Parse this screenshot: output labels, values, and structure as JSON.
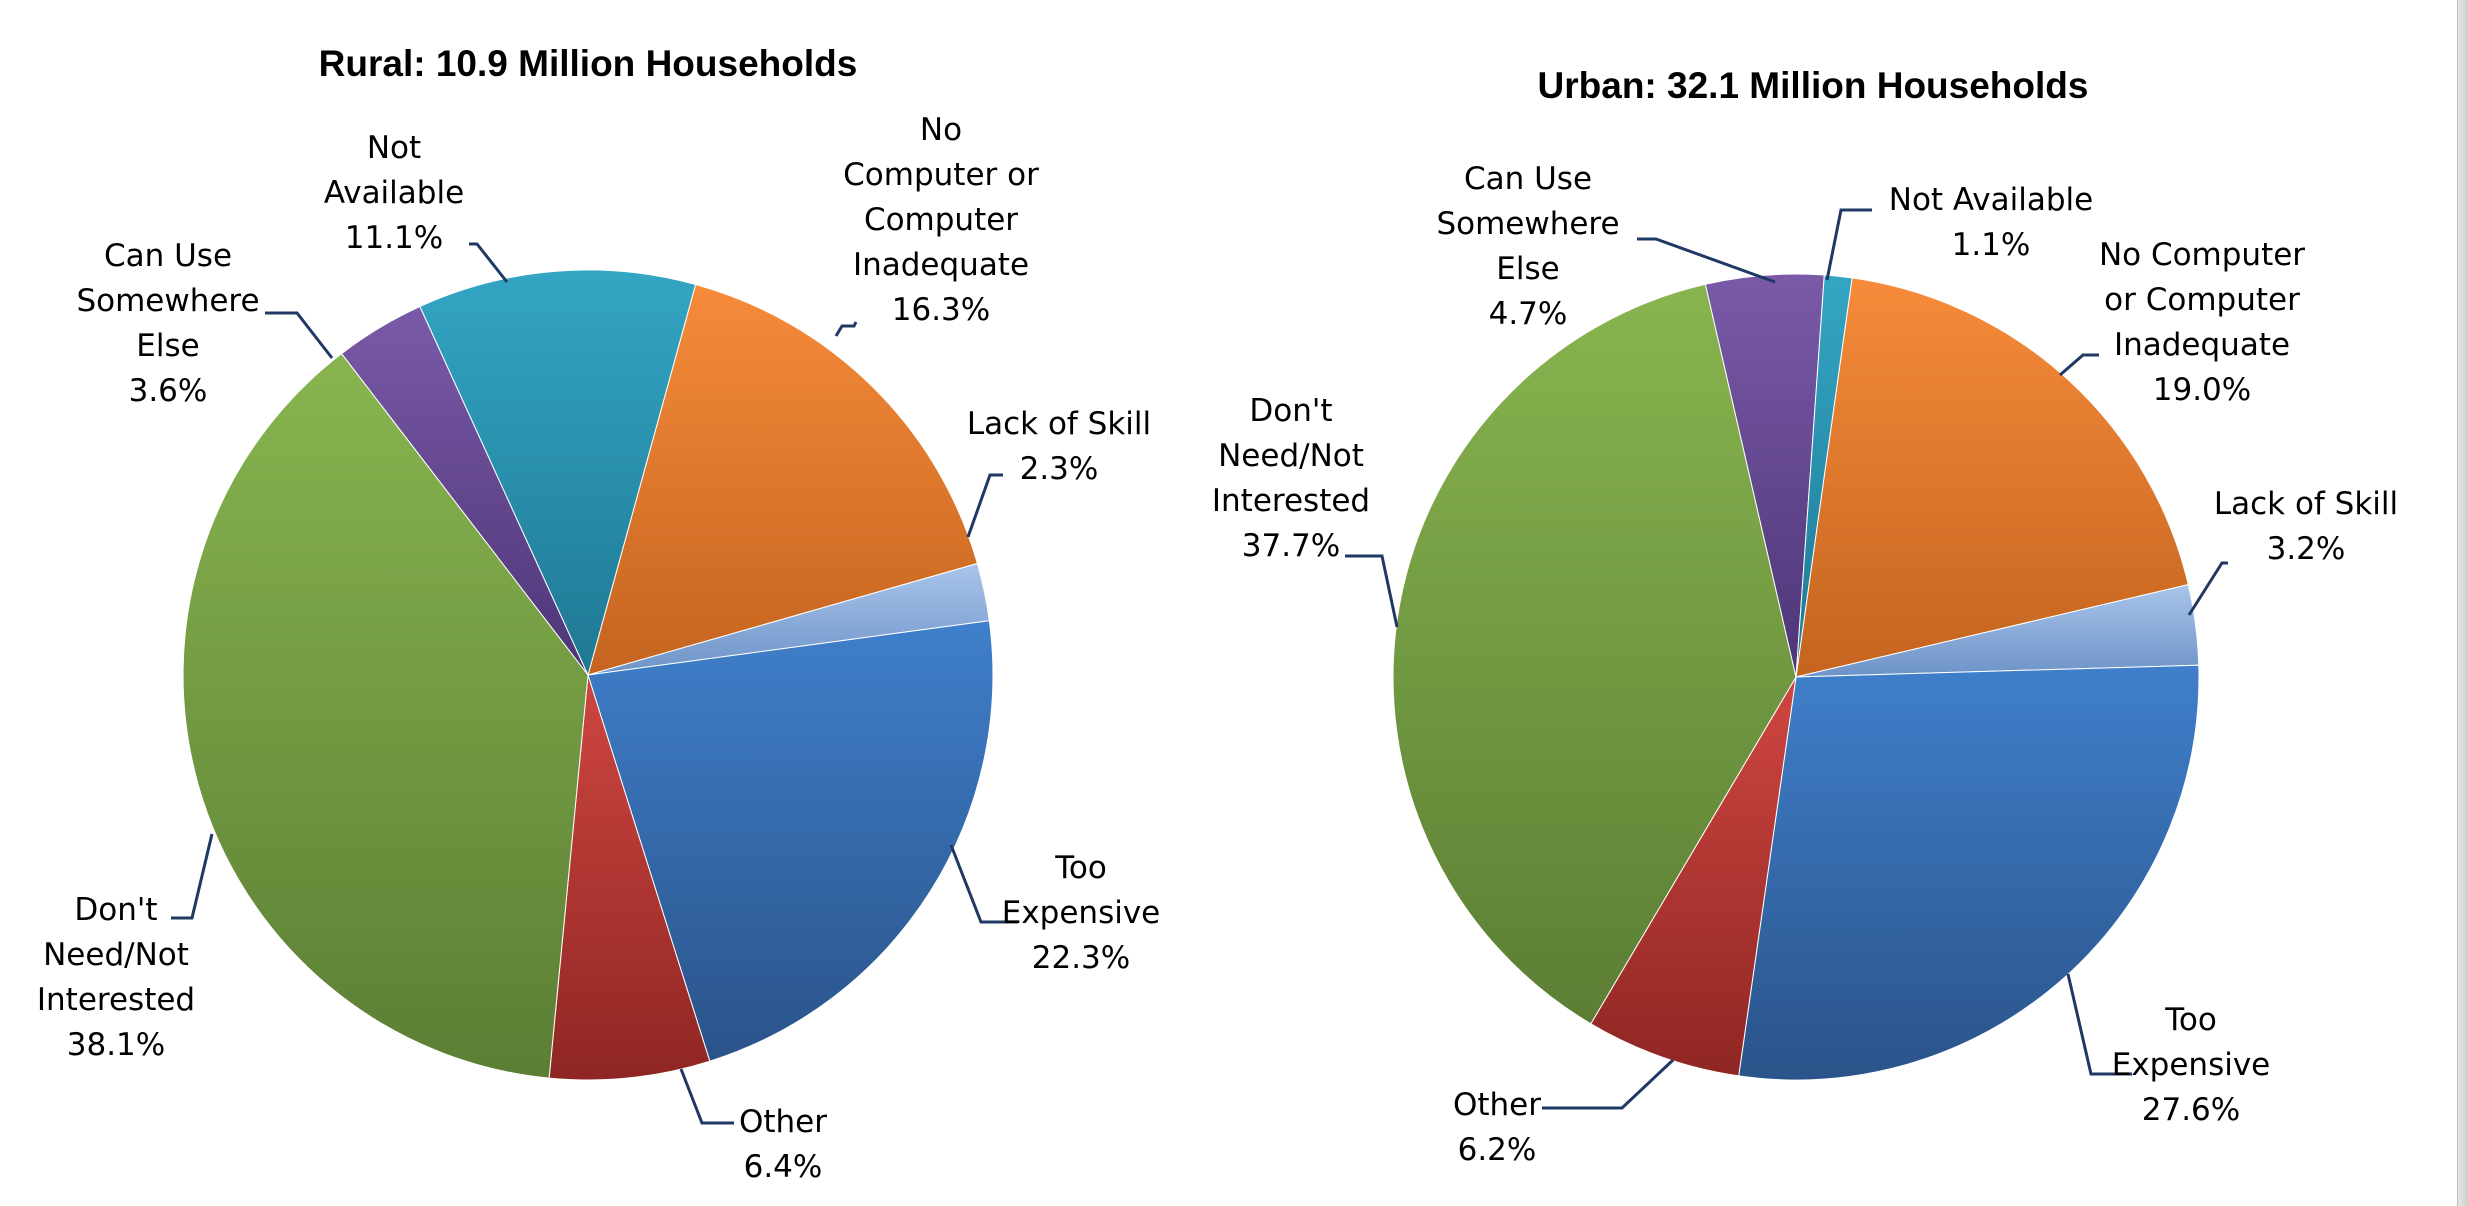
{
  "chart_data": [
    {
      "type": "pie",
      "title": "Rural:  10.9 Million Households",
      "slices": [
        {
          "label": "No Computer or Computer Inadequate",
          "lines": [
            "No",
            "Computer or",
            "Computer",
            "Inadequate"
          ],
          "value": 16.3,
          "pct": "16.3%",
          "color": "orange"
        },
        {
          "label": "Lack of Skill",
          "lines": [
            "Lack of Skill"
          ],
          "value": 2.3,
          "pct": "2.3%",
          "color": "lightblue"
        },
        {
          "label": "Too Expensive",
          "lines": [
            "Too",
            "Expensive"
          ],
          "value": 22.3,
          "pct": "22.3%",
          "color": "blue"
        },
        {
          "label": "Other",
          "lines": [
            "Other"
          ],
          "value": 6.4,
          "pct": "6.4%",
          "color": "red"
        },
        {
          "label": "Don't Need/Not Interested",
          "lines": [
            "Don't",
            "Need/Not",
            "Interested"
          ],
          "value": 38.1,
          "pct": "38.1%",
          "color": "green"
        },
        {
          "label": "Can Use Somewhere Else",
          "lines": [
            "Can Use",
            "Somewhere",
            "Else"
          ],
          "value": 3.6,
          "pct": "3.6%",
          "color": "purple"
        },
        {
          "label": "Not Available",
          "lines": [
            "Not",
            "Available"
          ],
          "value": 11.1,
          "pct": "11.1%",
          "color": "teal"
        }
      ]
    },
    {
      "type": "pie",
      "title": "Urban:  32.1 Million Households",
      "slices": [
        {
          "label": "No Computer or Computer Inadequate",
          "lines": [
            "No Computer",
            "or Computer",
            "Inadequate"
          ],
          "value": 19.0,
          "pct": "19.0%",
          "color": "orange"
        },
        {
          "label": "Lack of Skill",
          "lines": [
            "Lack of Skill"
          ],
          "value": 3.2,
          "pct": "3.2%",
          "color": "lightblue"
        },
        {
          "label": "Too Expensive",
          "lines": [
            "Too",
            "Expensive"
          ],
          "value": 27.6,
          "pct": "27.6%",
          "color": "blue"
        },
        {
          "label": "Other",
          "lines": [
            "Other"
          ],
          "value": 6.2,
          "pct": "6.2%",
          "color": "red"
        },
        {
          "label": "Don't Need/Not Interested",
          "lines": [
            "Don't",
            "Need/Not",
            "Interested"
          ],
          "value": 37.7,
          "pct": "37.7%",
          "color": "green"
        },
        {
          "label": "Can Use Somewhere Else",
          "lines": [
            "Can Use",
            "Somewhere",
            "Else"
          ],
          "value": 4.7,
          "pct": "4.7%",
          "color": "purple"
        },
        {
          "label": "Not Available",
          "lines": [
            "Not Available"
          ],
          "value": 1.1,
          "pct": "1.1%",
          "color": "teal"
        }
      ]
    }
  ],
  "palette": {
    "orange": [
      "#f68b3a",
      "#c4641f"
    ],
    "lightblue": [
      "#a9c4ea",
      "#6d93c8"
    ],
    "blue": [
      "#3f7fcb",
      "#2a5389"
    ],
    "red": [
      "#cf4641",
      "#8f2623"
    ],
    "green": [
      "#88b54f",
      "#5b7e34"
    ],
    "purple": [
      "#7a5aa8",
      "#4d3576"
    ],
    "teal": [
      "#33a6c4",
      "#1f7893"
    ],
    "leader": "#1f3864"
  }
}
